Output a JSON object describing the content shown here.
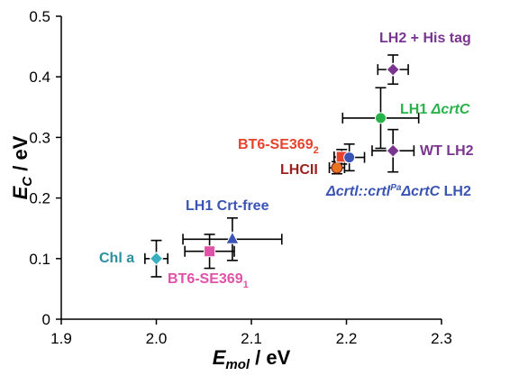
{
  "chart_data": {
    "type": "scatter",
    "xlabel": {
      "main": "E",
      "sub": "mol",
      "unit": " / eV"
    },
    "ylabel": {
      "main": "E",
      "sub": "C",
      "unit": " / eV"
    },
    "xlim": [
      1.9,
      2.3
    ],
    "ylim": [
      0,
      0.5
    ],
    "xticks": [
      "1.9",
      "2.0",
      "2.1",
      "2.2",
      "2.3"
    ],
    "yticks": [
      "0",
      "0.1",
      "0.2",
      "0.3",
      "0.4",
      "0.5"
    ],
    "xtick_values": [
      1.9,
      2.0,
      2.1,
      2.2,
      2.3
    ],
    "ytick_values": [
      0,
      0.1,
      0.2,
      0.3,
      0.4,
      0.5
    ],
    "grid": false,
    "points": [
      {
        "key": "chl-a",
        "x": 2.0,
        "y": 0.1,
        "xerr": 0.012,
        "yerr": 0.03,
        "color": "#3aafc0",
        "marker": "diamond"
      },
      {
        "key": "bt6-se369-1",
        "x": 2.056,
        "y": 0.112,
        "xerr": 0.026,
        "yerr": 0.028,
        "color": "#e052a8",
        "marker": "square"
      },
      {
        "key": "lh1-crt-free",
        "x": 2.08,
        "y": 0.132,
        "xerr": 0.052,
        "yerr": 0.035,
        "color": "#3b54b4",
        "marker": "triangle"
      },
      {
        "key": "lhcii",
        "x": 2.19,
        "y": 0.25,
        "xerr": 0.008,
        "yerr": 0.01,
        "color": "#e87422",
        "marker": "circle"
      },
      {
        "key": "bt6-se369-2",
        "x": 2.195,
        "y": 0.268,
        "xerr": 0.008,
        "yerr": 0.012,
        "color": "#e8412c",
        "marker": "square"
      },
      {
        "key": "dcrti-lh2",
        "x": 2.203,
        "y": 0.267,
        "xerr": 0.016,
        "yerr": 0.022,
        "color": "#3b54b4",
        "marker": "circle"
      },
      {
        "key": "wt-lh2",
        "x": 2.249,
        "y": 0.278,
        "xerr": 0.022,
        "yerr": 0.035,
        "color": "#7a3590",
        "marker": "diamond"
      },
      {
        "key": "lh1-dcrtc",
        "x": 2.236,
        "y": 0.332,
        "xerr": 0.04,
        "yerr": 0.05,
        "color": "#2ab24a",
        "marker": "circle"
      },
      {
        "key": "lh2-his",
        "x": 2.249,
        "y": 0.412,
        "xerr": 0.016,
        "yerr": 0.024,
        "color": "#7a3590",
        "marker": "diamond"
      }
    ],
    "labels": {
      "chl_a": "Chl a",
      "bt6_1_main": "BT6-SE369",
      "bt6_1_sub": "1",
      "lh1_crt_free": "LH1 Crt-free",
      "lhcii": "LHCII",
      "bt6_2_main": "BT6-SE369",
      "bt6_2_sub": "2",
      "dcrti_a": "Δcrtl::crtl",
      "dcrti_sup": "Pa",
      "dcrti_b": "ΔcrtC",
      "dcrti_c": " LH2",
      "wt_lh2": "WT LH2",
      "lh1_dcrtc_a": "LH1 ",
      "lh1_dcrtc_b": "ΔcrtC",
      "lh2_his": "LH2 + His tag"
    },
    "label_colors": {
      "chl_a": "#2a8fa0",
      "bt6_1": "#e052a8",
      "lh1_crt_free": "#3b54b4",
      "lhcii": "#9b1f1f",
      "bt6_2": "#e8412c",
      "dcrti": "#3b54b4",
      "wt_lh2": "#7a3590",
      "lh1_dcrtc": "#2ab24a",
      "lh2_his": "#7a3590"
    }
  }
}
